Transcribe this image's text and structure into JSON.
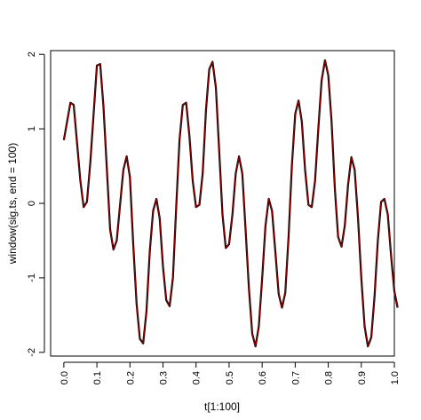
{
  "chart_data": {
    "type": "line",
    "xlabel": "t[1:100]",
    "ylabel": "window(sig.ts, end = 100)",
    "xlim": [
      -0.04,
      1.0
    ],
    "ylim": [
      -2.05,
      2.05
    ],
    "x_ticks": [
      0.0,
      0.1,
      0.2,
      0.3,
      0.4,
      0.5,
      0.6,
      0.7,
      0.8,
      0.9,
      1.0
    ],
    "x_tick_labels": [
      "0.0",
      "0.1",
      "0.2",
      "0.3",
      "0.4",
      "0.5",
      "0.6",
      "0.7",
      "0.8",
      "0.9",
      "1.0"
    ],
    "y_ticks": [
      -2,
      -1,
      0,
      1,
      2
    ],
    "y_tick_labels": [
      "-2",
      "-1",
      "0",
      "1",
      "2"
    ],
    "grid": false,
    "series": [
      {
        "color": "#000000",
        "points": [
          [
            0.0,
            0.85
          ],
          [
            0.02,
            1.35
          ],
          [
            0.03,
            1.32
          ],
          [
            0.05,
            0.3
          ],
          [
            0.06,
            -0.05
          ],
          [
            0.07,
            0.02
          ],
          [
            0.08,
            0.55
          ],
          [
            0.1,
            1.85
          ],
          [
            0.11,
            1.87
          ],
          [
            0.12,
            1.3
          ],
          [
            0.14,
            -0.35
          ],
          [
            0.15,
            -0.62
          ],
          [
            0.16,
            -0.5
          ],
          [
            0.18,
            0.45
          ],
          [
            0.19,
            0.63
          ],
          [
            0.2,
            0.35
          ],
          [
            0.21,
            -0.55
          ],
          [
            0.22,
            -1.35
          ],
          [
            0.23,
            -1.82
          ],
          [
            0.24,
            -1.88
          ],
          [
            0.25,
            -1.45
          ],
          [
            0.26,
            -0.65
          ],
          [
            0.27,
            -0.1
          ],
          [
            0.28,
            0.06
          ],
          [
            0.29,
            -0.2
          ],
          [
            0.3,
            -0.85
          ],
          [
            0.31,
            -1.3
          ],
          [
            0.32,
            -1.38
          ],
          [
            0.33,
            -1.0
          ],
          [
            0.34,
            -0.05
          ],
          [
            0.35,
            0.85
          ],
          [
            0.36,
            1.32
          ],
          [
            0.37,
            1.35
          ],
          [
            0.38,
            0.9
          ],
          [
            0.39,
            0.3
          ],
          [
            0.4,
            -0.05
          ],
          [
            0.41,
            -0.02
          ],
          [
            0.42,
            0.4
          ],
          [
            0.43,
            1.25
          ],
          [
            0.44,
            1.8
          ],
          [
            0.45,
            1.9
          ],
          [
            0.46,
            1.55
          ],
          [
            0.47,
            0.7
          ],
          [
            0.48,
            -0.15
          ],
          [
            0.49,
            -0.6
          ],
          [
            0.5,
            -0.55
          ],
          [
            0.51,
            -0.15
          ],
          [
            0.52,
            0.4
          ],
          [
            0.53,
            0.63
          ],
          [
            0.54,
            0.4
          ],
          [
            0.55,
            -0.35
          ],
          [
            0.56,
            -1.15
          ],
          [
            0.57,
            -1.75
          ],
          [
            0.58,
            -1.92
          ],
          [
            0.59,
            -1.65
          ],
          [
            0.6,
            -1.0
          ],
          [
            0.61,
            -0.3
          ],
          [
            0.62,
            0.06
          ],
          [
            0.63,
            -0.1
          ],
          [
            0.64,
            -0.65
          ],
          [
            0.65,
            -1.22
          ],
          [
            0.66,
            -1.4
          ],
          [
            0.67,
            -1.2
          ],
          [
            0.68,
            -0.45
          ],
          [
            0.69,
            0.5
          ],
          [
            0.7,
            1.2
          ],
          [
            0.71,
            1.38
          ],
          [
            0.72,
            1.1
          ],
          [
            0.73,
            0.45
          ],
          [
            0.74,
            -0.02
          ],
          [
            0.75,
            -0.05
          ],
          [
            0.76,
            0.3
          ],
          [
            0.77,
            1.0
          ],
          [
            0.78,
            1.65
          ],
          [
            0.79,
            1.92
          ],
          [
            0.8,
            1.72
          ],
          [
            0.81,
            1.1
          ],
          [
            0.82,
            0.2
          ],
          [
            0.83,
            -0.45
          ],
          [
            0.84,
            -0.58
          ],
          [
            0.85,
            -0.3
          ],
          [
            0.86,
            0.25
          ],
          [
            0.87,
            0.62
          ],
          [
            0.88,
            0.45
          ],
          [
            0.89,
            -0.2
          ],
          [
            0.9,
            -1.0
          ],
          [
            0.91,
            -1.65
          ],
          [
            0.92,
            -1.92
          ],
          [
            0.93,
            -1.8
          ],
          [
            0.94,
            -1.25
          ],
          [
            0.95,
            -0.5
          ],
          [
            0.96,
            0.02
          ],
          [
            0.97,
            0.06
          ],
          [
            0.98,
            -0.15
          ],
          [
            0.99,
            -0.7
          ],
          [
            1.0,
            -1.18
          ],
          [
            1.01,
            -1.4
          ]
        ]
      },
      {
        "color": "#8b0000",
        "points": [
          [
            0.0,
            0.85
          ],
          [
            0.02,
            1.35
          ],
          [
            0.03,
            1.32
          ],
          [
            0.05,
            0.3
          ],
          [
            0.06,
            -0.05
          ],
          [
            0.07,
            0.02
          ],
          [
            0.08,
            0.55
          ],
          [
            0.1,
            1.85
          ],
          [
            0.11,
            1.87
          ],
          [
            0.12,
            1.3
          ],
          [
            0.14,
            -0.35
          ],
          [
            0.15,
            -0.62
          ],
          [
            0.16,
            -0.5
          ],
          [
            0.18,
            0.45
          ],
          [
            0.19,
            0.63
          ],
          [
            0.2,
            0.35
          ],
          [
            0.21,
            -0.55
          ],
          [
            0.22,
            -1.35
          ],
          [
            0.23,
            -1.82
          ],
          [
            0.24,
            -1.88
          ],
          [
            0.25,
            -1.45
          ],
          [
            0.26,
            -0.65
          ],
          [
            0.27,
            -0.1
          ],
          [
            0.28,
            0.06
          ],
          [
            0.29,
            -0.2
          ],
          [
            0.3,
            -0.85
          ],
          [
            0.31,
            -1.3
          ],
          [
            0.32,
            -1.38
          ],
          [
            0.33,
            -1.0
          ],
          [
            0.34,
            -0.05
          ],
          [
            0.35,
            0.85
          ],
          [
            0.36,
            1.32
          ],
          [
            0.37,
            1.35
          ],
          [
            0.38,
            0.9
          ],
          [
            0.39,
            0.3
          ],
          [
            0.4,
            -0.05
          ],
          [
            0.41,
            -0.02
          ],
          [
            0.42,
            0.4
          ],
          [
            0.43,
            1.25
          ],
          [
            0.44,
            1.8
          ],
          [
            0.45,
            1.9
          ],
          [
            0.46,
            1.55
          ],
          [
            0.47,
            0.7
          ],
          [
            0.48,
            -0.15
          ],
          [
            0.49,
            -0.6
          ],
          [
            0.5,
            -0.55
          ],
          [
            0.51,
            -0.15
          ],
          [
            0.52,
            0.4
          ],
          [
            0.53,
            0.63
          ],
          [
            0.54,
            0.4
          ],
          [
            0.55,
            -0.35
          ],
          [
            0.56,
            -1.15
          ],
          [
            0.57,
            -1.75
          ],
          [
            0.58,
            -1.92
          ],
          [
            0.59,
            -1.65
          ],
          [
            0.6,
            -1.0
          ],
          [
            0.61,
            -0.3
          ],
          [
            0.62,
            0.06
          ],
          [
            0.63,
            -0.1
          ],
          [
            0.64,
            -0.65
          ],
          [
            0.65,
            -1.22
          ],
          [
            0.66,
            -1.4
          ],
          [
            0.67,
            -1.2
          ],
          [
            0.68,
            -0.45
          ],
          [
            0.69,
            0.5
          ],
          [
            0.7,
            1.2
          ],
          [
            0.71,
            1.38
          ],
          [
            0.72,
            1.1
          ],
          [
            0.73,
            0.45
          ],
          [
            0.74,
            -0.02
          ],
          [
            0.75,
            -0.05
          ],
          [
            0.76,
            0.3
          ],
          [
            0.77,
            1.0
          ],
          [
            0.78,
            1.65
          ],
          [
            0.79,
            1.92
          ],
          [
            0.8,
            1.72
          ],
          [
            0.81,
            1.1
          ],
          [
            0.82,
            0.2
          ],
          [
            0.83,
            -0.45
          ],
          [
            0.84,
            -0.58
          ],
          [
            0.85,
            -0.3
          ],
          [
            0.86,
            0.25
          ],
          [
            0.87,
            0.62
          ],
          [
            0.88,
            0.45
          ],
          [
            0.89,
            -0.2
          ],
          [
            0.9,
            -1.0
          ],
          [
            0.91,
            -1.65
          ],
          [
            0.92,
            -1.92
          ],
          [
            0.93,
            -1.8
          ],
          [
            0.94,
            -1.25
          ],
          [
            0.95,
            -0.5
          ],
          [
            0.96,
            0.02
          ],
          [
            0.97,
            0.06
          ],
          [
            0.98,
            -0.15
          ],
          [
            0.99,
            -0.7
          ],
          [
            1.0,
            -1.18
          ],
          [
            1.01,
            -1.4
          ]
        ]
      }
    ]
  }
}
